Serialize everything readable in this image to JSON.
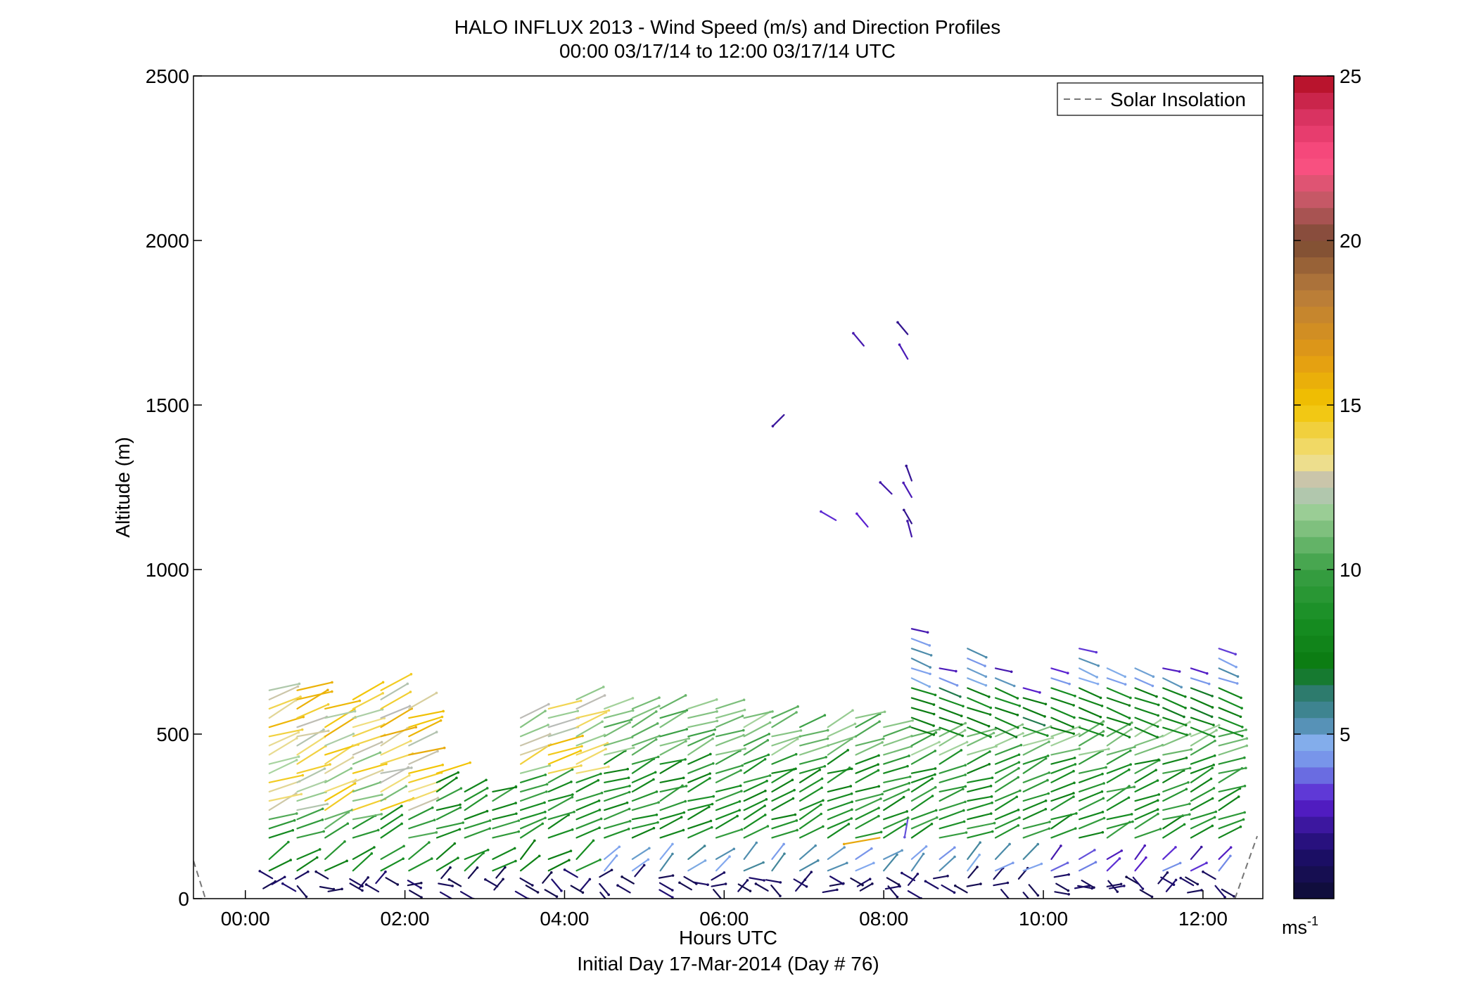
{
  "chart_data": {
    "type": "wind-barb-profile",
    "title": "HALO INFLUX 2013 - Wind Speed (m/s) and Direction Profiles",
    "subtitle": "00:00 03/17/14 to 12:00 03/17/14  UTC",
    "xlabel": "Hours UTC",
    "xlabel2": "Initial Day 17-Mar-2014 (Day # 76)",
    "ylabel": "Altitude (m)",
    "xlim": [
      -0.65,
      12.75
    ],
    "ylim": [
      0,
      2500
    ],
    "xticks": [
      0,
      2,
      4,
      6,
      8,
      10,
      12
    ],
    "xtick_labels": [
      "00:00",
      "02:00",
      "04:00",
      "06:00",
      "08:00",
      "10:00",
      "12:00"
    ],
    "yticks": [
      0,
      500,
      1000,
      1500,
      2000,
      2500
    ],
    "ytick_labels": [
      "0",
      "500",
      "1000",
      "1500",
      "2000",
      "2500"
    ],
    "grid": false,
    "legend": {
      "position": "top-right",
      "entries": [
        "Solar Insolation"
      ]
    },
    "colorbar": {
      "range": [
        0,
        25
      ],
      "ticks": [
        5,
        10,
        15,
        20,
        25
      ],
      "tick_labels": [
        "5",
        "10",
        "15",
        "20",
        "25"
      ],
      "unit_label": "ms",
      "unit_exponent": "-1",
      "stops": [
        {
          "v": 0,
          "c": "#0d0d33"
        },
        {
          "v": 1.5,
          "c": "#1e0e6e"
        },
        {
          "v": 3,
          "c": "#5a1fd0"
        },
        {
          "v": 4,
          "c": "#6f86e6"
        },
        {
          "v": 4.7,
          "c": "#87b0f0"
        },
        {
          "v": 5.4,
          "c": "#4a8aa8"
        },
        {
          "v": 6.3,
          "c": "#2b7a6a"
        },
        {
          "v": 7,
          "c": "#0a7a10"
        },
        {
          "v": 8.5,
          "c": "#178e23"
        },
        {
          "v": 10,
          "c": "#3a9f44"
        },
        {
          "v": 12,
          "c": "#a8d4a0"
        },
        {
          "v": 12.5,
          "c": "#b9b9b9"
        },
        {
          "v": 13.3,
          "c": "#f0e08a"
        },
        {
          "v": 15,
          "c": "#f2c400"
        },
        {
          "v": 16.5,
          "c": "#e29a14"
        },
        {
          "v": 18.5,
          "c": "#b57a3c"
        },
        {
          "v": 20,
          "c": "#7a4a32"
        },
        {
          "v": 21.2,
          "c": "#c35865"
        },
        {
          "v": 22.4,
          "c": "#ff4f84"
        },
        {
          "v": 24,
          "c": "#d22e5a"
        },
        {
          "v": 25,
          "c": "#b00b1e"
        }
      ]
    },
    "solar_insolation": {
      "left": [
        [
          -0.65,
          115
        ],
        [
          -0.5,
          0
        ]
      ],
      "right": [
        [
          12.4,
          0
        ],
        [
          12.68,
          190
        ]
      ]
    },
    "profile_times": [
      0.3,
      0.65,
      1.0,
      1.35,
      1.7,
      2.05,
      2.4,
      2.75,
      3.1,
      3.45,
      3.8,
      4.15,
      4.5,
      4.85,
      5.2,
      5.55,
      5.9,
      6.25,
      6.6,
      6.95,
      7.3,
      7.65,
      8.0,
      8.35,
      8.7,
      9.05,
      9.4,
      9.75,
      10.1,
      10.45,
      10.8,
      11.15,
      11.5,
      11.85,
      12.2
    ],
    "profile_tops": [
      650,
      640,
      600,
      620,
      640,
      600,
      400,
      330,
      330,
      570,
      580,
      620,
      600,
      580,
      580,
      580,
      580,
      570,
      560,
      540,
      540,
      550,
      540,
      520,
      510,
      500,
      500,
      500,
      500,
      500,
      500,
      500,
      500,
      500,
      510
    ],
    "upper_profile_times": [
      8.35,
      8.7,
      9.05,
      9.4,
      9.75,
      10.1,
      10.45,
      10.8,
      11.15,
      11.5,
      11.85,
      12.2
    ],
    "upper_profile_tops": [
      830,
      700,
      780,
      700,
      640,
      700,
      770,
      720,
      720,
      700,
      700,
      760
    ],
    "upper_profile_bottoms": [
      520,
      520,
      520,
      520,
      520,
      520,
      520,
      520,
      520,
      520,
      520,
      520
    ],
    "isolated_barbs": [
      {
        "t": 6.75,
        "z": 1470,
        "dir": 225,
        "speed": 2.2
      },
      {
        "t": 7.75,
        "z": 1680,
        "dir": 320,
        "speed": 2.5
      },
      {
        "t": 8.3,
        "z": 1715,
        "dir": 320,
        "speed": 2.0
      },
      {
        "t": 8.3,
        "z": 1640,
        "dir": 330,
        "speed": 2.6
      },
      {
        "t": 7.4,
        "z": 1150,
        "dir": 300,
        "speed": 3.1
      },
      {
        "t": 7.8,
        "z": 1130,
        "dir": 320,
        "speed": 3.0
      },
      {
        "t": 8.1,
        "z": 1230,
        "dir": 315,
        "speed": 2.4
      },
      {
        "t": 8.35,
        "z": 1270,
        "dir": 340,
        "speed": 2.1
      },
      {
        "t": 8.35,
        "z": 1220,
        "dir": 330,
        "speed": 2.6
      },
      {
        "t": 8.35,
        "z": 1140,
        "dir": 330,
        "speed": 2.0
      },
      {
        "t": 8.35,
        "z": 1100,
        "dir": 345,
        "speed": 2.4
      },
      {
        "t": 7.95,
        "z": 185,
        "dir": 260,
        "speed": 16.0
      },
      {
        "t": 8.3,
        "z": 240,
        "dir": 190,
        "speed": 3.5
      }
    ]
  }
}
